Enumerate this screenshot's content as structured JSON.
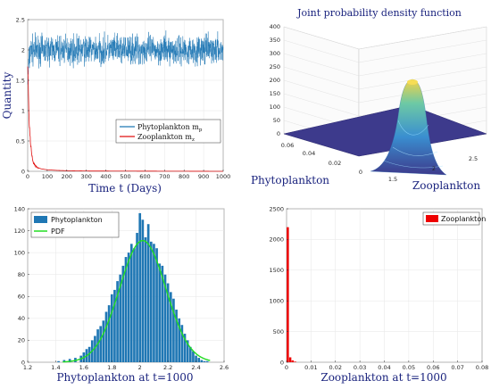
{
  "chart_data": [
    {
      "type": "line",
      "id": "timeseries",
      "xlabel": "Time t (Days)",
      "ylabel": "Quantity",
      "xlim": [
        0,
        1000
      ],
      "ylim": [
        0,
        2.5
      ],
      "xticks": [
        0,
        100,
        200,
        300,
        400,
        500,
        600,
        700,
        800,
        900,
        1000
      ],
      "yticks": [
        0,
        0.5,
        1,
        1.5,
        2,
        2.5
      ],
      "grid": true,
      "legend": "bottom-right",
      "series": [
        {
          "name": "Phytoplankton m",
          "subscript": "p",
          "color": "#1f77b4",
          "description_mean": 2.0,
          "spread": 0.18,
          "x": [
            0,
            3,
            6,
            10,
            15,
            20,
            30,
            50,
            100,
            200,
            300,
            400,
            500,
            600,
            700,
            800,
            900,
            1000
          ],
          "values": [
            1.5,
            1.6,
            1.8,
            1.9,
            2.0,
            2.0,
            2.0,
            2.0,
            2.0,
            2.0,
            2.0,
            2.0,
            2.0,
            2.0,
            2.0,
            2.0,
            2.0,
            2.0
          ]
        },
        {
          "name": "Zooplankton m",
          "subscript": "z",
          "color": "#e01010",
          "x": [
            0,
            2,
            4,
            6,
            8,
            10,
            12,
            15,
            20,
            25,
            30,
            40,
            50,
            70,
            100,
            150,
            200,
            300,
            1000
          ],
          "values": [
            1.7,
            1.55,
            1.3,
            1.0,
            0.75,
            0.7,
            0.6,
            0.45,
            0.3,
            0.2,
            0.14,
            0.09,
            0.06,
            0.04,
            0.025,
            0.015,
            0.01,
            0.005,
            0.0
          ]
        }
      ]
    },
    {
      "type": "surface",
      "id": "joint-pdf",
      "title": "Joint probability density function",
      "xlabel": "Zooplankton",
      "ylabel": "Phytoplankton",
      "x_ticks": [
        "1.5",
        "2",
        "2.5"
      ],
      "y_ticks": [
        "0",
        "0.02",
        "0.04",
        "0.06"
      ],
      "z_ticks": [
        "0",
        "50",
        "100",
        "150",
        "200",
        "250",
        "300",
        "350",
        "400"
      ],
      "peak": {
        "zooplankton": 2.0,
        "phytoplankton": 0.0,
        "density": 290
      }
    },
    {
      "type": "bar",
      "id": "phyto-hist",
      "xlabel": "Phytoplankton at t=1000",
      "xlim": [
        1.2,
        2.6
      ],
      "ylim": [
        0,
        140
      ],
      "xticks": [
        1.2,
        1.4,
        1.6,
        1.8,
        2,
        2.2,
        2.4,
        2.6
      ],
      "yticks": [
        0,
        20,
        40,
        60,
        80,
        100,
        120,
        140
      ],
      "grid": true,
      "legend": "top-left",
      "series": [
        {
          "name": "Phytoplankton",
          "kind": "histogram",
          "color": "#1f77b4",
          "x": [
            1.42,
            1.46,
            1.5,
            1.54,
            1.58,
            1.6,
            1.62,
            1.64,
            1.66,
            1.68,
            1.7,
            1.72,
            1.74,
            1.76,
            1.78,
            1.8,
            1.82,
            1.84,
            1.86,
            1.88,
            1.9,
            1.92,
            1.94,
            1.96,
            1.98,
            2.0,
            2.02,
            2.04,
            2.06,
            2.08,
            2.1,
            2.12,
            2.14,
            2.16,
            2.18,
            2.2,
            2.22,
            2.24,
            2.26,
            2.28,
            2.3,
            2.32,
            2.34,
            2.36,
            2.38,
            2.4,
            2.42,
            2.44,
            2.46,
            2.48
          ],
          "values": [
            1,
            2,
            3,
            4,
            6,
            9,
            12,
            14,
            20,
            24,
            30,
            33,
            38,
            46,
            52,
            62,
            66,
            74,
            80,
            88,
            96,
            100,
            108,
            104,
            118,
            136,
            130,
            114,
            126,
            110,
            108,
            104,
            90,
            88,
            80,
            72,
            64,
            58,
            48,
            40,
            34,
            26,
            20,
            14,
            10,
            6,
            4,
            2,
            1,
            1
          ]
        },
        {
          "name": "PDF",
          "kind": "line",
          "color": "#22dd22",
          "mean": 2.02,
          "sd": 0.165,
          "peak": 111
        }
      ]
    },
    {
      "type": "bar",
      "id": "zoo-hist",
      "xlabel": "Zooplankton at t=1000",
      "xlim": [
        0,
        0.08
      ],
      "ylim": [
        0,
        2500
      ],
      "xticks": [
        0,
        0.01,
        0.02,
        0.03,
        0.04,
        0.05,
        0.06,
        0.07,
        0.08
      ],
      "yticks": [
        0,
        500,
        1000,
        1500,
        2000,
        2500
      ],
      "grid": true,
      "legend": "top-right",
      "series": [
        {
          "name": "Zooplankton",
          "color": "#ee0000",
          "x": [
            0.0005,
            0.0015,
            0.0025,
            0.0035
          ],
          "values": [
            2200,
            80,
            30,
            10
          ]
        }
      ]
    }
  ]
}
